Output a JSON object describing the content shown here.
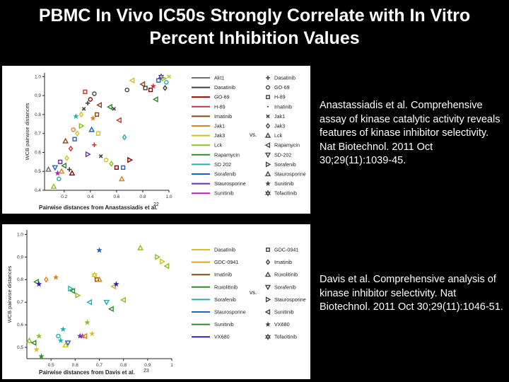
{
  "title": {
    "line1": "PBMC In Vivo IC50s Strongly Correlate with In Vitro",
    "line2": "Percent Inhibition Values"
  },
  "citations": [
    "Anastassiadis et al. Comprehensive assay of kinase catalytic activity reveals features of kinase inhibitor selectivity. Nat Biotechnol. 2011 Oct 30;29(11):1039-45.",
    "Davis et al. Comprehensive analysis of kinase inhibitor selectivity. Nat Biotechnol. 2011 Oct 30;29(11):1046-51."
  ],
  "chart_data": [
    {
      "type": "scatter",
      "title": "",
      "xlabel": "Pairwise distances from Anastassiadis et al.",
      "xlabel_ref": "22",
      "ylabel": "WCB pairwise distances",
      "xlim": [
        0.05,
        1.0
      ],
      "ylim": [
        0.4,
        1.02
      ],
      "xticks": [
        "0.2",
        "0.4",
        "0.6",
        "0.8",
        "1.0"
      ],
      "yticks": [
        "0.4",
        "0.5",
        "0.6",
        "0.7",
        "0.8",
        "0.9",
        "1.0"
      ],
      "legend_vs": "vs.",
      "legend_lines": [
        {
          "name": "Akt1",
          "color": "#707070"
        },
        {
          "name": "Dasatinib",
          "color": "#404040"
        },
        {
          "name": "GO-69",
          "color": "#8b0000"
        },
        {
          "name": "H-89",
          "color": "#cc3333"
        },
        {
          "name": "Imatinib",
          "color": "#8b4513"
        },
        {
          "name": "Jak1",
          "color": "#e08020"
        },
        {
          "name": "Jak3",
          "color": "#d4c020"
        },
        {
          "name": "Lck",
          "color": "#8bbf20"
        },
        {
          "name": "Rapamycin",
          "color": "#2a8c2a"
        },
        {
          "name": "SD 202",
          "color": "#20b0b0"
        },
        {
          "name": "Sorafenib",
          "color": "#2060c0"
        },
        {
          "name": "Staurosporine",
          "color": "#6030b0"
        },
        {
          "name": "Sunitinib",
          "color": "#b020b0"
        }
      ],
      "legend_markers": [
        {
          "name": "Dasatinib",
          "marker": "plus"
        },
        {
          "name": "GO-69",
          "marker": "circle"
        },
        {
          "name": "H-89",
          "marker": "square"
        },
        {
          "name": "Imatinib",
          "marker": "dot"
        },
        {
          "name": "Jak1",
          "marker": "x"
        },
        {
          "name": "Jak3",
          "marker": "diamond"
        },
        {
          "name": "Lck",
          "marker": "triangle"
        },
        {
          "name": "Rapamycin",
          "marker": "tri-left"
        },
        {
          "name": "SD-202",
          "marker": "tri-down"
        },
        {
          "name": "Sorafenib",
          "marker": "tri-right"
        },
        {
          "name": "Staurosporine",
          "marker": "triangle"
        },
        {
          "name": "Sunitinib",
          "marker": "star"
        },
        {
          "name": "Tofacitinib",
          "marker": "star6"
        }
      ],
      "points": [
        {
          "x": 0.12,
          "y": 0.42,
          "c": "#8bbf20",
          "m": "triangle"
        },
        {
          "x": 0.08,
          "y": 0.51,
          "c": "#707070",
          "m": "triangle"
        },
        {
          "x": 0.13,
          "y": 0.52,
          "c": "#2060c0",
          "m": "tri-down"
        },
        {
          "x": 0.15,
          "y": 0.49,
          "c": "#b020b0",
          "m": "star"
        },
        {
          "x": 0.16,
          "y": 0.46,
          "c": "#20b0b0",
          "m": "circle"
        },
        {
          "x": 0.18,
          "y": 0.5,
          "c": "#e08020",
          "m": "triangle"
        },
        {
          "x": 0.2,
          "y": 0.53,
          "c": "#2a8c2a",
          "m": "tri-left"
        },
        {
          "x": 0.17,
          "y": 0.55,
          "c": "#6030b0",
          "m": "square"
        },
        {
          "x": 0.22,
          "y": 0.57,
          "c": "#d4c020",
          "m": "diamond"
        },
        {
          "x": 0.24,
          "y": 0.51,
          "c": "#404040",
          "m": "plus"
        },
        {
          "x": 0.26,
          "y": 0.49,
          "c": "#8b0000",
          "m": "triangle"
        },
        {
          "x": 0.25,
          "y": 0.62,
          "c": "#cc3333",
          "m": "diamond"
        },
        {
          "x": 0.21,
          "y": 0.66,
          "c": "#8b4513",
          "m": "triangle"
        },
        {
          "x": 0.28,
          "y": 0.67,
          "c": "#2060c0",
          "m": "square"
        },
        {
          "x": 0.3,
          "y": 0.7,
          "c": "#d4c020",
          "m": "diamond"
        },
        {
          "x": 0.27,
          "y": 0.72,
          "c": "#e08020",
          "m": "circle"
        },
        {
          "x": 0.33,
          "y": 0.74,
          "c": "#8bbf20",
          "m": "tri-right"
        },
        {
          "x": 0.29,
          "y": 0.79,
          "c": "#20b0b0",
          "m": "star"
        },
        {
          "x": 0.35,
          "y": 0.83,
          "c": "#404040",
          "m": "x"
        },
        {
          "x": 0.38,
          "y": 0.86,
          "c": "#404040",
          "m": "plus"
        },
        {
          "x": 0.4,
          "y": 0.88,
          "c": "#8b0000",
          "m": "circle"
        },
        {
          "x": 0.43,
          "y": 0.91,
          "c": "#404040",
          "m": "circle"
        },
        {
          "x": 0.36,
          "y": 0.92,
          "c": "#cc3333",
          "m": "square"
        },
        {
          "x": 0.47,
          "y": 0.85,
          "c": "#8b4513",
          "m": "tri-left"
        },
        {
          "x": 0.55,
          "y": 0.84,
          "c": "#2a8c2a",
          "m": "tri-left"
        },
        {
          "x": 0.58,
          "y": 0.83,
          "c": "#404040",
          "m": "x"
        },
        {
          "x": 0.62,
          "y": 0.77,
          "c": "#cc3333",
          "m": "tri-left"
        },
        {
          "x": 0.42,
          "y": 0.78,
          "c": "#e08020",
          "m": "star"
        },
        {
          "x": 0.45,
          "y": 0.8,
          "c": "#8b4513",
          "m": "square"
        },
        {
          "x": 0.33,
          "y": 0.8,
          "c": "#d4c020",
          "m": "diamond"
        },
        {
          "x": 0.41,
          "y": 0.72,
          "c": "#2060c0",
          "m": "triangle"
        },
        {
          "x": 0.46,
          "y": 0.7,
          "c": "#d4c020",
          "m": "square"
        },
        {
          "x": 0.43,
          "y": 0.64,
          "c": "#cc3333",
          "m": "plus"
        },
        {
          "x": 0.38,
          "y": 0.59,
          "c": "#6030b0",
          "m": "tri-right"
        },
        {
          "x": 0.48,
          "y": 0.58,
          "c": "#404040",
          "m": "x"
        },
        {
          "x": 0.52,
          "y": 0.56,
          "c": "#d4c020",
          "m": "circle"
        },
        {
          "x": 0.56,
          "y": 0.54,
          "c": "#8bbf20",
          "m": "diamond"
        },
        {
          "x": 0.6,
          "y": 0.52,
          "c": "#8b0000",
          "m": "square"
        },
        {
          "x": 0.65,
          "y": 0.52,
          "c": "#2060c0",
          "m": "square"
        },
        {
          "x": 0.64,
          "y": 0.46,
          "c": "#e08020",
          "m": "triangle"
        },
        {
          "x": 0.7,
          "y": 0.56,
          "c": "#8b0000",
          "m": "tri-right"
        },
        {
          "x": 0.66,
          "y": 0.68,
          "c": "#20b0b0",
          "m": "diamond"
        },
        {
          "x": 0.68,
          "y": 0.93,
          "c": "#404040",
          "m": "circle"
        },
        {
          "x": 0.72,
          "y": 0.98,
          "c": "#d4c020",
          "m": "tri-left"
        },
        {
          "x": 0.8,
          "y": 0.96,
          "c": "#8b4513",
          "m": "tri-left"
        },
        {
          "x": 0.82,
          "y": 0.94,
          "c": "#404040",
          "m": "square"
        },
        {
          "x": 0.86,
          "y": 0.93,
          "c": "#8b0000",
          "m": "square"
        },
        {
          "x": 0.88,
          "y": 0.95,
          "c": "#cc3333",
          "m": "star"
        },
        {
          "x": 0.92,
          "y": 0.98,
          "c": "#2060c0",
          "m": "square"
        },
        {
          "x": 0.94,
          "y": 1.0,
          "c": "#6030b0",
          "m": "star6"
        },
        {
          "x": 0.96,
          "y": 0.99,
          "c": "#8bbf20",
          "m": "tri-right"
        },
        {
          "x": 0.98,
          "y": 0.97,
          "c": "#20b0b0",
          "m": "circle"
        },
        {
          "x": 0.97,
          "y": 0.94,
          "c": "#404040",
          "m": "diamond"
        },
        {
          "x": 0.9,
          "y": 0.88,
          "c": "#2a8c2a",
          "m": "tri-left"
        },
        {
          "x": 1.0,
          "y": 1.0,
          "c": "#d4c020",
          "m": "x"
        }
      ]
    },
    {
      "type": "scatter",
      "title": "",
      "xlabel": "Pairwise distances from Davis et al.",
      "xlabel_ref": "23",
      "ylabel": "WCB pairwise distances",
      "xlim": [
        0.4,
        1.0
      ],
      "ylim": [
        0.45,
        1.02
      ],
      "xticks": [
        "0.5",
        "0.6",
        "0.7",
        "0.8",
        "0.9",
        "1"
      ],
      "yticks": [
        "0.5",
        "0.6",
        "0.7",
        "0.8",
        "0.9",
        "1.0"
      ],
      "legend_vs": "vs.",
      "legend_lines": [
        {
          "name": "Dasatinib",
          "color": "#d4c020"
        },
        {
          "name": "GDC-0941",
          "color": "#e0a020"
        },
        {
          "name": "Imatinib",
          "color": "#8b4513"
        },
        {
          "name": "Ruxolitinib",
          "color": "#2a8c2a"
        },
        {
          "name": "Sorafenib",
          "color": "#20b0b0"
        },
        {
          "name": "Staurosporine",
          "color": "#2060c0"
        },
        {
          "name": "Sunitinib",
          "color": "#2a8c2a"
        },
        {
          "name": "VX680",
          "color": "#3020b0"
        }
      ],
      "legend_markers": [
        {
          "name": "GDC-0941",
          "marker": "square"
        },
        {
          "name": "Imatinib",
          "marker": "diamond"
        },
        {
          "name": "Ruxolitinib",
          "marker": "triangle"
        },
        {
          "name": "Sorafenib",
          "marker": "tri-down"
        },
        {
          "name": "Staurosporine",
          "marker": "tri-right"
        },
        {
          "name": "Sunitinib",
          "marker": "tri-left"
        },
        {
          "name": "VX680",
          "marker": "star"
        },
        {
          "name": "Tofacitinib",
          "marker": "star6"
        }
      ],
      "points": [
        {
          "x": 0.41,
          "y": 0.53,
          "c": "#8bbf20",
          "m": "triangle"
        },
        {
          "x": 0.43,
          "y": 0.52,
          "c": "#2a8c2a",
          "m": "tri-left"
        },
        {
          "x": 0.44,
          "y": 0.49,
          "c": "#d4c020",
          "m": "star"
        },
        {
          "x": 0.45,
          "y": 0.55,
          "c": "#8bbf20",
          "m": "star"
        },
        {
          "x": 0.46,
          "y": 0.46,
          "c": "#2a8c2a",
          "m": "star"
        },
        {
          "x": 0.44,
          "y": 0.79,
          "c": "#2a8c2a",
          "m": "tri-left"
        },
        {
          "x": 0.45,
          "y": 0.78,
          "c": "#3020b0",
          "m": "star"
        },
        {
          "x": 0.48,
          "y": 0.8,
          "c": "#e08020",
          "m": "diamond"
        },
        {
          "x": 0.52,
          "y": 0.81,
          "c": "#e08020",
          "m": "star"
        },
        {
          "x": 0.53,
          "y": 0.55,
          "c": "#20b0b0",
          "m": "circle"
        },
        {
          "x": 0.54,
          "y": 0.53,
          "c": "#20b0b0",
          "m": "star"
        },
        {
          "x": 0.55,
          "y": 0.58,
          "c": "#20b0b0",
          "m": "star"
        },
        {
          "x": 0.56,
          "y": 0.51,
          "c": "#d4c020",
          "m": "triangle"
        },
        {
          "x": 0.57,
          "y": 0.52,
          "c": "#2060c0",
          "m": "tri-down"
        },
        {
          "x": 0.58,
          "y": 0.76,
          "c": "#20b0b0",
          "m": "tri-right"
        },
        {
          "x": 0.59,
          "y": 0.75,
          "c": "#2a8c2a",
          "m": "tri-left"
        },
        {
          "x": 0.61,
          "y": 0.73,
          "c": "#8bbf20",
          "m": "tri-right"
        },
        {
          "x": 0.62,
          "y": 0.55,
          "c": "#6030b0",
          "m": "star"
        },
        {
          "x": 0.63,
          "y": 0.55,
          "c": "#b020b0",
          "m": "star"
        },
        {
          "x": 0.64,
          "y": 0.55,
          "c": "#e08020",
          "m": "tri-left"
        },
        {
          "x": 0.65,
          "y": 0.61,
          "c": "#8bbf20",
          "m": "star"
        },
        {
          "x": 0.66,
          "y": 0.7,
          "c": "#20b0b0",
          "m": "tri-left"
        },
        {
          "x": 0.67,
          "y": 0.56,
          "c": "#d4c020",
          "m": "star"
        },
        {
          "x": 0.68,
          "y": 0.82,
          "c": "#d4c020",
          "m": "star6"
        },
        {
          "x": 0.69,
          "y": 0.8,
          "c": "#8b4513",
          "m": "square"
        },
        {
          "x": 0.7,
          "y": 0.8,
          "c": "#e08020",
          "m": "triangle"
        },
        {
          "x": 0.7,
          "y": 0.93,
          "c": "#2060c0",
          "m": "star"
        },
        {
          "x": 0.73,
          "y": 0.7,
          "c": "#20b0b0",
          "m": "tri-down"
        },
        {
          "x": 0.75,
          "y": 0.67,
          "c": "#2a8c2a",
          "m": "tri-left"
        },
        {
          "x": 0.76,
          "y": 0.77,
          "c": "#e0a020",
          "m": "tri-left"
        },
        {
          "x": 0.77,
          "y": 0.78,
          "c": "#3020b0",
          "m": "star"
        },
        {
          "x": 0.8,
          "y": 0.71,
          "c": "#8bbf20",
          "m": "tri-left"
        },
        {
          "x": 0.87,
          "y": 0.94,
          "c": "#8bbf20",
          "m": "triangle"
        },
        {
          "x": 0.94,
          "y": 0.9,
          "c": "#8bbf20",
          "m": "tri-right"
        },
        {
          "x": 0.96,
          "y": 0.88,
          "c": "#d4c020",
          "m": "tri-right"
        },
        {
          "x": 0.98,
          "y": 0.86,
          "c": "#8bbf20",
          "m": "tri-left"
        }
      ]
    }
  ]
}
